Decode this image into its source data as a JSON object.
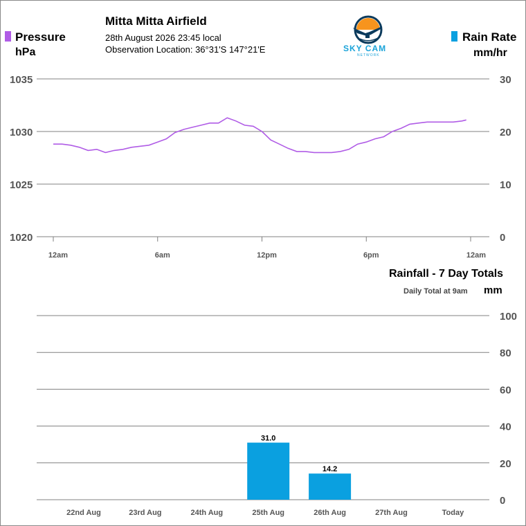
{
  "header": {
    "station": "Mitta Mitta Airfield",
    "datetime": "28th August 2026  23:45 local",
    "location": "Observation Location: 36°31'S 147°21'E"
  },
  "logo": {
    "text": "SKY CAM",
    "subtext": "NETWORK",
    "colors": {
      "sun": "#f7941d",
      "ring": "#0b3a5c",
      "text": "#1aa3d9"
    }
  },
  "legend": {
    "pressure": {
      "label": "Pressure",
      "unit": "hPa",
      "color": "#b05ce6"
    },
    "rain_rate": {
      "label": "Rain Rate",
      "unit": "mm/hr",
      "color": "#0aa0e0"
    }
  },
  "rainfall_panel": {
    "title": "Rainfall - 7 Day Totals",
    "subtitle": "Daily Total at 9am",
    "unit": "mm"
  },
  "chart_data": [
    {
      "type": "line",
      "x_ticks": [
        "12am",
        "6am",
        "12pm",
        "6pm",
        "12am"
      ],
      "x_range_hours": [
        0,
        24
      ],
      "y_left_ticks": [
        "1035",
        "1030",
        "1025",
        "1020"
      ],
      "y_right_ticks": [
        "30",
        "20",
        "10",
        "0"
      ],
      "ylim_left": [
        1020,
        1035
      ],
      "ylim_right": [
        0,
        30
      ],
      "grid": true,
      "series": [
        {
          "name": "Pressure",
          "axis": "left",
          "x_hours": [
            0,
            0.5,
            1,
            1.5,
            2,
            2.5,
            3,
            3.5,
            4,
            4.5,
            5,
            5.5,
            6,
            6.5,
            7,
            7.5,
            8,
            8.5,
            9,
            9.5,
            10,
            10.5,
            11,
            11.5,
            12,
            12.5,
            13,
            13.5,
            14,
            14.5,
            15,
            15.5,
            16,
            16.5,
            17,
            17.5,
            18,
            18.5,
            19,
            19.5,
            20,
            20.5,
            21,
            21.5,
            22,
            22.5,
            23,
            23.5,
            23.75
          ],
          "values": [
            1028.8,
            1028.8,
            1028.7,
            1028.5,
            1028.2,
            1028.3,
            1028.0,
            1028.2,
            1028.3,
            1028.5,
            1028.6,
            1028.7,
            1029.0,
            1029.3,
            1029.9,
            1030.2,
            1030.4,
            1030.6,
            1030.8,
            1030.8,
            1031.3,
            1031.0,
            1030.6,
            1030.5,
            1030.0,
            1029.2,
            1028.8,
            1028.4,
            1028.1,
            1028.1,
            1028.0,
            1028.0,
            1028.0,
            1028.1,
            1028.3,
            1028.8,
            1029.0,
            1029.3,
            1029.5,
            1030.0,
            1030.3,
            1030.7,
            1030.8,
            1030.9,
            1030.9,
            1030.9,
            1030.9,
            1031.0,
            1031.1
          ]
        },
        {
          "name": "Rain Rate",
          "axis": "right",
          "values": []
        }
      ]
    },
    {
      "type": "bar",
      "categories": [
        "22nd Aug",
        "23rd Aug",
        "24th Aug",
        "25th Aug",
        "26th Aug",
        "27th Aug",
        "Today"
      ],
      "values": [
        0,
        0,
        0,
        31.0,
        14.2,
        0,
        0
      ],
      "value_labels": [
        "",
        "",
        "",
        "31.0",
        "14.2",
        "",
        ""
      ],
      "y_ticks": [
        "100",
        "80",
        "60",
        "40",
        "20",
        "0"
      ],
      "ylim": [
        0,
        100
      ],
      "grid": true,
      "bar_color": "#0aa0e0"
    }
  ]
}
